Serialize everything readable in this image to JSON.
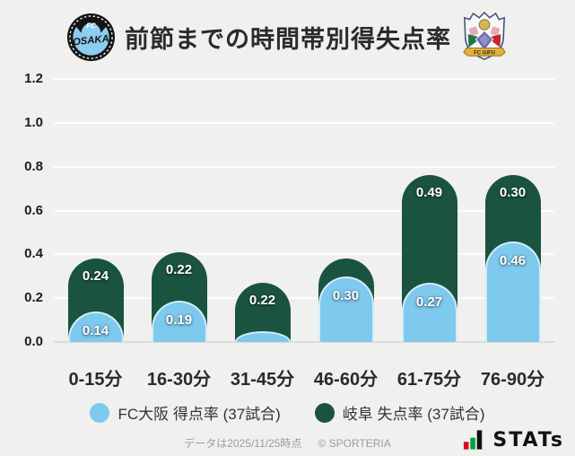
{
  "header": {
    "title": "前節までの時間帯別得失点率",
    "home_logo": {
      "fc": "FC",
      "name": "OSAKA"
    },
    "away_logo": {
      "banner": "FC GIFU"
    }
  },
  "chart_data": {
    "type": "bar",
    "stacked": true,
    "title": "前節までの時間帯別得失点率",
    "categories": [
      "0-15分",
      "16-30分",
      "31-45分",
      "46-60分",
      "61-75分",
      "76-90分"
    ],
    "series": [
      {
        "name": "FC大阪 得点率 (37試合)",
        "color": "#7ec9ee",
        "values": [
          0.14,
          0.19,
          0.05,
          0.3,
          0.27,
          0.46
        ],
        "labels": [
          "0.14",
          "0.19",
          "",
          "0.30",
          "0.27",
          "0.46"
        ]
      },
      {
        "name": "岐阜 失点率 (37試合)",
        "color": "#1a5441",
        "values": [
          0.24,
          0.22,
          0.22,
          0.08,
          0.49,
          0.3
        ],
        "labels": [
          "0.24",
          "0.22",
          "0.22",
          "",
          "0.49",
          "0.30"
        ]
      }
    ],
    "ylim": [
      0,
      1.2
    ],
    "yticks": [
      0.0,
      0.2,
      0.4,
      0.6,
      0.8,
      1.0,
      1.2
    ],
    "grid": true,
    "legend_position": "bottom"
  },
  "footer": {
    "credit": "データは2025/11/25時点",
    "copyright": "© SPORTERIA",
    "brand": "STATs"
  },
  "colors": {
    "background": "#f0f0ee",
    "bar_blue": "#7ec9ee",
    "bar_green": "#1a5441",
    "gridline": "#fdfdfc",
    "baseline": "#dcdcda"
  }
}
